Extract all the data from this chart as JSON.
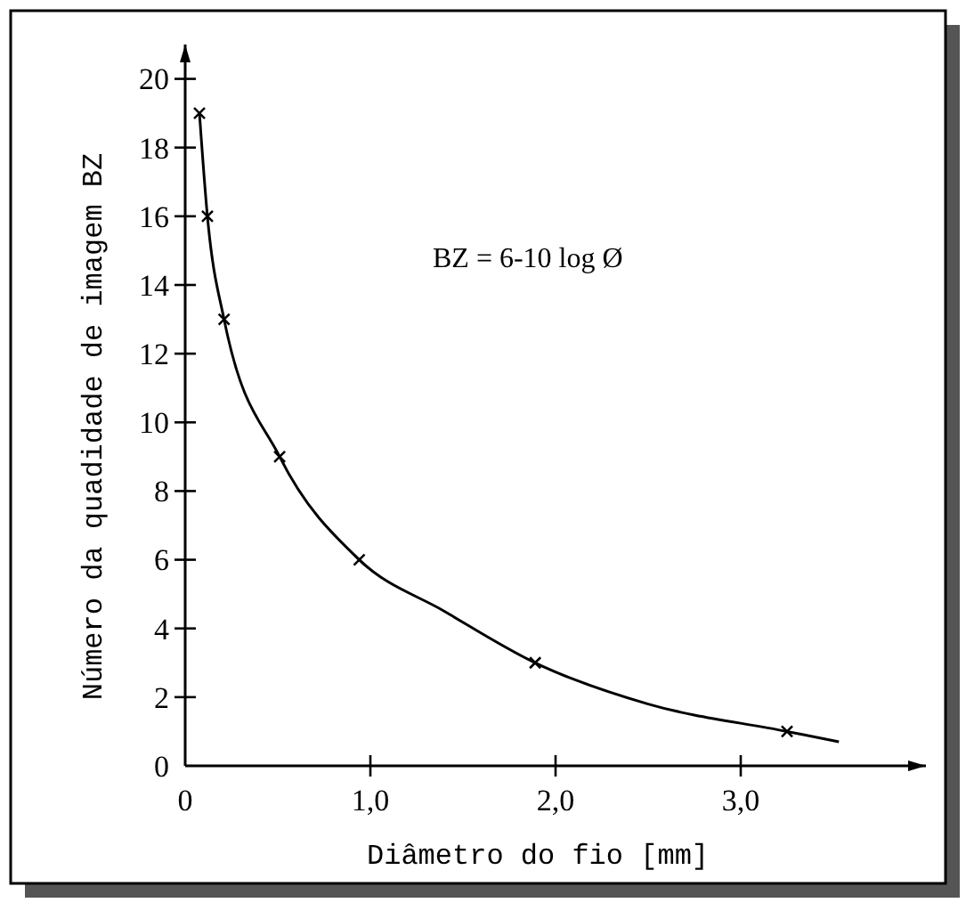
{
  "chart_data": {
    "type": "line",
    "xlabel": "Diâmetro do fio [mm]",
    "ylabel": "Número da quadidade de imagem BZ",
    "annotations": [
      "BZ = 6-10 log Ø"
    ],
    "xlim": [
      0,
      4
    ],
    "ylim": [
      0,
      21
    ],
    "xticks": [
      0,
      {
        "value": 1,
        "label": "1,0"
      },
      {
        "value": 2,
        "label": "2,0"
      },
      {
        "value": 3,
        "label": "3,0"
      }
    ],
    "yticks": [
      0,
      2,
      4,
      6,
      8,
      10,
      12,
      14,
      16,
      18,
      20
    ],
    "grid": false,
    "series": [
      {
        "color": "#000000",
        "marker": "none",
        "x": [
          0.077,
          0.12,
          0.21,
          0.51,
          0.94,
          1.4,
          1.89,
          2.5,
          3.25,
          3.53
        ],
        "values": [
          19,
          16,
          13,
          9,
          6,
          4.5,
          3,
          1.8,
          1,
          0.7
        ]
      },
      {
        "type": "scatter",
        "color": "#000000",
        "marker": "cross",
        "x": [
          0.077,
          0.12,
          0.21,
          0.51,
          0.94,
          1.89,
          3.25
        ],
        "values": [
          19,
          16,
          13,
          9,
          6,
          3,
          1
        ]
      }
    ]
  }
}
